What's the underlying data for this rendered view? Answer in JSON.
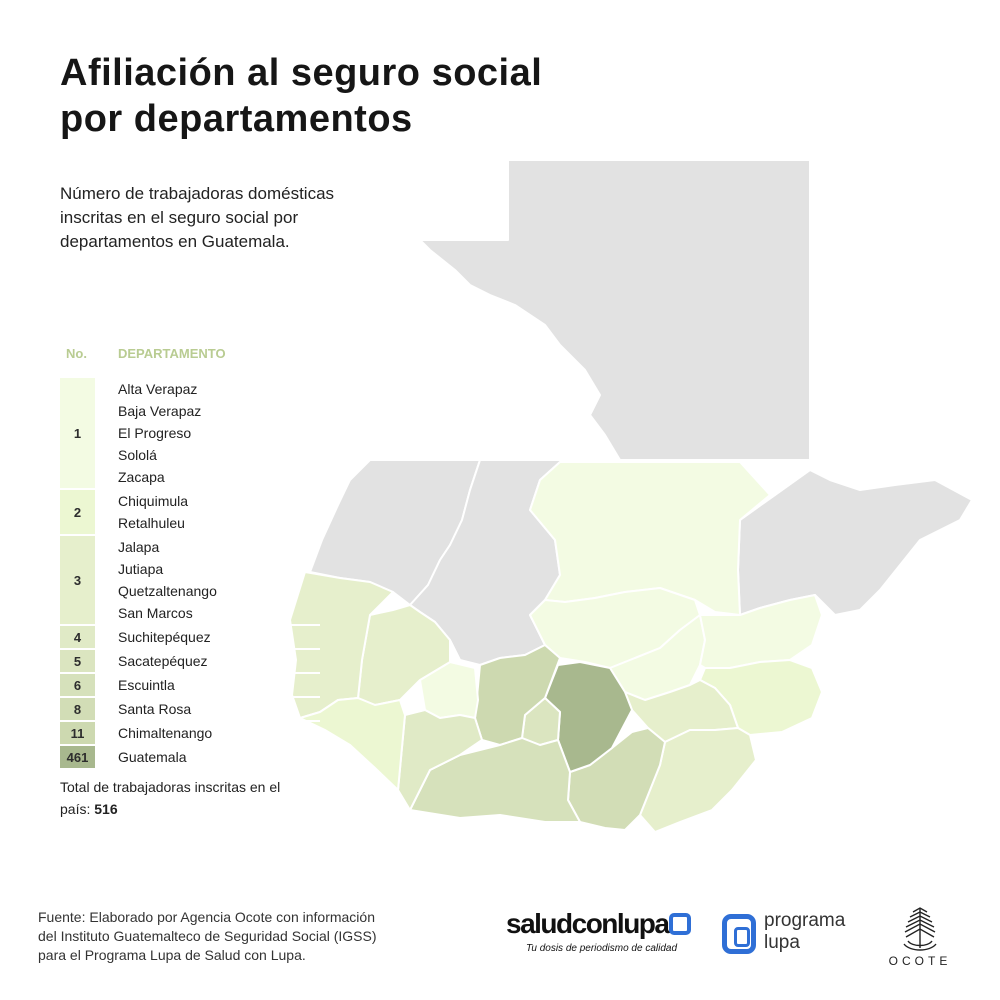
{
  "title_lines": [
    "Afiliación al seguro social",
    "por departamentos"
  ],
  "subtitle_lines": [
    "Número de trabajadoras domésticas",
    "inscritas en el seguro social por",
    "departamentos en Guatemala."
  ],
  "legend": {
    "header_no": "No.",
    "header_department": "DEPARTAMENTO",
    "header_color": "#b9cc92",
    "groups": [
      {
        "value": "1",
        "color": "#f3fbe3",
        "departments": [
          "Alta Verapaz",
          "Baja Verapaz",
          "El Progreso",
          "Sololá",
          "Zacapa"
        ]
      },
      {
        "value": "2",
        "color": "#ecf7d2",
        "departments": [
          "Chiquimula",
          "Retalhuleu"
        ]
      },
      {
        "value": "3",
        "color": "#e6efcc",
        "departments": [
          "Jalapa",
          "Jutiapa",
          "Quetzaltenango",
          "San Marcos"
        ]
      },
      {
        "value": "4",
        "color": "#e0eac6",
        "departments": [
          "Suchitepéquez"
        ]
      },
      {
        "value": "5",
        "color": "#dbe5c0",
        "departments": [
          "Sacatepéquez"
        ]
      },
      {
        "value": "6",
        "color": "#d6e1bb",
        "departments": [
          "Escuintla"
        ]
      },
      {
        "value": "8",
        "color": "#d2ddb6",
        "departments": [
          "Santa Rosa"
        ]
      },
      {
        "value": "11",
        "color": "#cdd9b0",
        "departments": [
          "Chimaltenango"
        ]
      },
      {
        "value": "461",
        "color": "#a8b88e",
        "departments": [
          "Guatemala"
        ]
      }
    ]
  },
  "total": {
    "label": "Total de trabajadoras inscritas en el país:",
    "value": "516"
  },
  "source_lines": [
    "Fuente: Elaborado por Agencia Ocote con información",
    "del Instituto Guatemalteco de Seguridad Social (IGSS)",
    "para el Programa Lupa de Salud con Lupa."
  ],
  "logos": {
    "saludconlupa": {
      "word": "saludconlupa",
      "tagline": "Tu dosis de periodismo de calidad"
    },
    "programa_lupa": {
      "line1": "programa",
      "line2": "lupa"
    },
    "ocote": {
      "word": "OCOTE"
    }
  },
  "colors": {
    "no_data": "#e2e2e2",
    "border": "#ffffff",
    "brand_blue": "#2f6fd6"
  }
}
